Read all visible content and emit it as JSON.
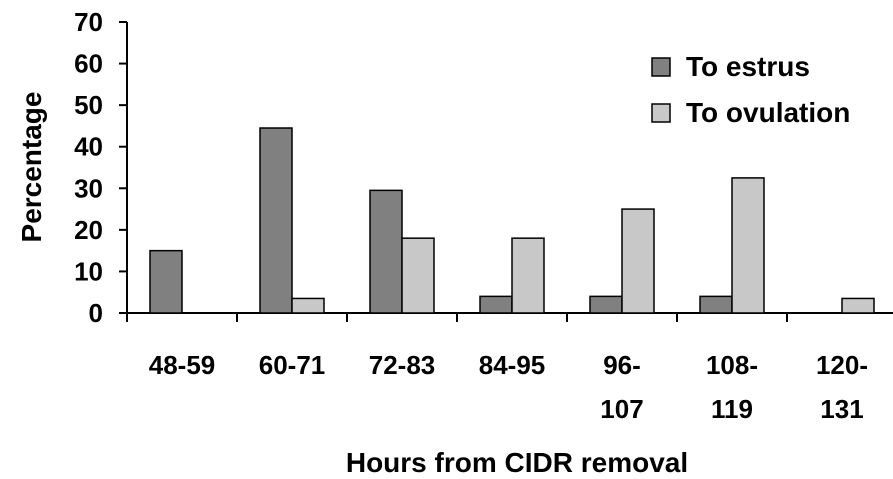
{
  "chart_data": {
    "type": "bar",
    "title": "",
    "xlabel": "Hours from CIDR removal",
    "ylabel": "Percentage",
    "ylim": [
      0,
      70
    ],
    "yticks": [
      0,
      10,
      20,
      30,
      40,
      50,
      60,
      70
    ],
    "categories": [
      "48-59",
      "60-71",
      "72-83",
      "84-95",
      "96-107",
      "108-119",
      "120-131"
    ],
    "category_lines": [
      [
        "48-59"
      ],
      [
        "60-71"
      ],
      [
        "72-83"
      ],
      [
        "84-95"
      ],
      [
        "96-",
        "107"
      ],
      [
        "108-",
        "119"
      ],
      [
        "120-",
        "131"
      ]
    ],
    "series": [
      {
        "name": "To estrus",
        "color": "#808080",
        "values": [
          15,
          44.5,
          29.5,
          4,
          4,
          4,
          0
        ]
      },
      {
        "name": "To ovulation",
        "color": "#c8c8c8",
        "values": [
          0,
          3.5,
          18,
          18,
          25,
          32.5,
          3.5
        ]
      }
    ],
    "legend_position": "top-right",
    "grid": false
  }
}
